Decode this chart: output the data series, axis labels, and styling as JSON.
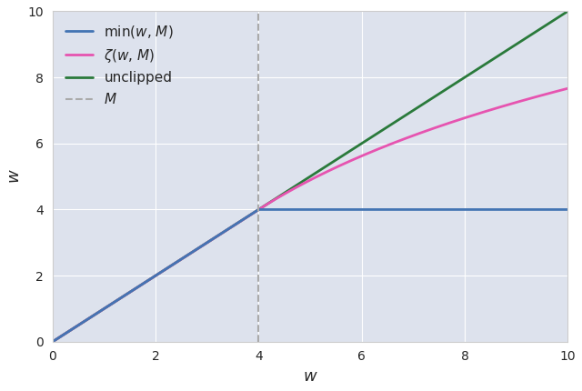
{
  "M": 4,
  "x_min": 0,
  "x_max": 10,
  "y_min": 0,
  "y_max": 10,
  "xticks": [
    0,
    2,
    4,
    6,
    8,
    10
  ],
  "yticks": [
    0,
    2,
    4,
    6,
    8,
    10
  ],
  "xlabel": "$w$",
  "ylabel": "$w$",
  "color_min": "#4374b3",
  "color_zeta": "#e654b0",
  "color_unclipped": "#2a7a3b",
  "color_vline": "#aaaaaa",
  "label_min": "min($w$, $M$)",
  "label_zeta": "$\\zeta$($w$, $M$)",
  "label_unclipped": "unclipped",
  "label_vline": "$M$",
  "bg_color": "#dde2ed",
  "grid_color": "#ffffff",
  "legend_fontsize": 11,
  "axis_fontsize": 13,
  "linewidth": 2.0,
  "n_points": 500
}
